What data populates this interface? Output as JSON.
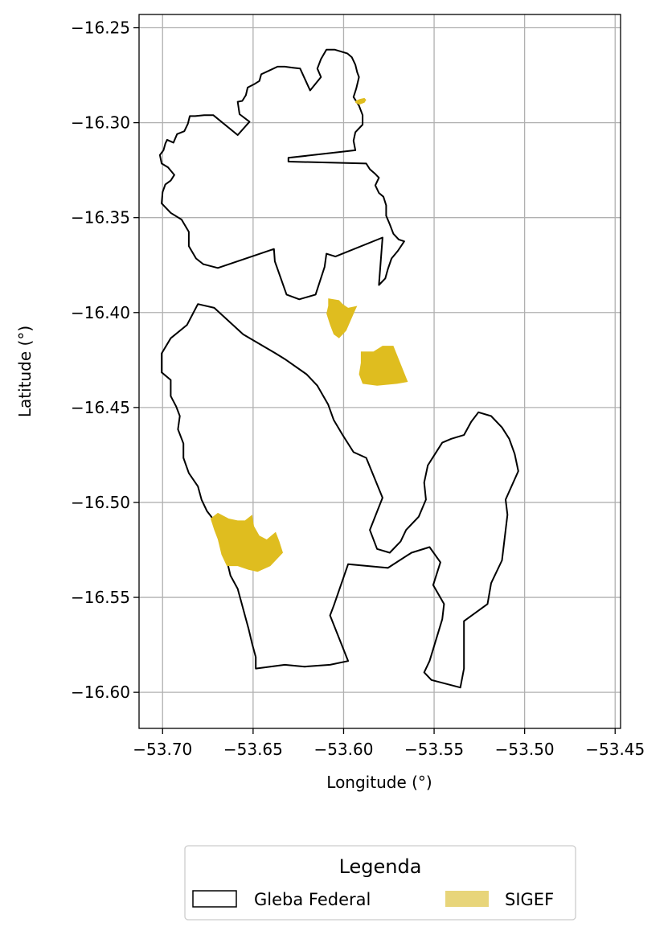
{
  "chart_data": {
    "type": "map",
    "xlabel": "Longitude (°)",
    "ylabel": "Latitude (°)",
    "xlim": [
      -53.713,
      -53.447
    ],
    "ylim": [
      -16.619,
      -16.243
    ],
    "grid": true,
    "x_ticks": [
      -53.7,
      -53.65,
      -53.6,
      -53.55,
      -53.5,
      -53.45
    ],
    "x_tick_labels": [
      "−53.70",
      "−53.65",
      "−53.60",
      "−53.55",
      "−53.50",
      "−53.45"
    ],
    "y_ticks": [
      -16.25,
      -16.3,
      -16.35,
      -16.4,
      -16.45,
      -16.5,
      -16.55,
      -16.6
    ],
    "y_tick_labels": [
      "−16.25",
      "−16.30",
      "−16.35",
      "−16.40",
      "−16.45",
      "−16.50",
      "−16.55",
      "−16.60"
    ],
    "legend": {
      "title": "Legenda",
      "placement": "bottom-center",
      "entries": [
        {
          "label": "Gleba Federal",
          "style": "outline",
          "color": "#000000"
        },
        {
          "label": "SIGEF",
          "style": "fill",
          "color": "#e8d57a"
        }
      ]
    },
    "colors": {
      "sigef_fill": "#dfbd1f",
      "gleba_edge": "#000000",
      "grid": "#b0b0b0"
    },
    "gleba_federal": [
      [
        -53.7015,
        -16.317
      ],
      [
        -53.6995,
        -16.3145
      ],
      [
        -53.6985,
        -16.311
      ],
      [
        -53.6975,
        -16.309
      ],
      [
        -53.694,
        -16.3105
      ],
      [
        -53.692,
        -16.306
      ],
      [
        -53.688,
        -16.3045
      ],
      [
        -53.686,
        -16.3005
      ],
      [
        -53.685,
        -16.2965
      ],
      [
        -53.682,
        -16.2965
      ],
      [
        -53.677,
        -16.296
      ],
      [
        -53.672,
        -16.296
      ],
      [
        -53.6585,
        -16.3065
      ],
      [
        -53.652,
        -16.2995
      ],
      [
        -53.6575,
        -16.2955
      ],
      [
        -53.6585,
        -16.289
      ],
      [
        -53.656,
        -16.2885
      ],
      [
        -53.654,
        -16.2855
      ],
      [
        -53.653,
        -16.2815
      ],
      [
        -53.649,
        -16.2795
      ],
      [
        -53.6465,
        -16.278
      ],
      [
        -53.6455,
        -16.2745
      ],
      [
        -53.641,
        -16.2725
      ],
      [
        -53.6365,
        -16.2705
      ],
      [
        -53.6325,
        -16.2705
      ],
      [
        -53.6285,
        -16.271
      ],
      [
        -53.624,
        -16.2715
      ],
      [
        -53.6185,
        -16.283
      ],
      [
        -53.6125,
        -16.276
      ],
      [
        -53.6145,
        -16.2715
      ],
      [
        -53.6125,
        -16.2665
      ],
      [
        -53.6095,
        -16.2615
      ],
      [
        -53.605,
        -16.2615
      ],
      [
        -53.6015,
        -16.2625
      ],
      [
        -53.598,
        -16.2635
      ],
      [
        -53.5955,
        -16.2655
      ],
      [
        -53.5935,
        -16.2695
      ],
      [
        -53.5925,
        -16.2735
      ],
      [
        -53.5915,
        -16.276
      ],
      [
        -53.593,
        -16.282
      ],
      [
        -53.5945,
        -16.2865
      ],
      [
        -53.5915,
        -16.291
      ],
      [
        -53.5895,
        -16.296
      ],
      [
        -53.5895,
        -16.301
      ],
      [
        -53.5935,
        -16.305
      ],
      [
        -53.5945,
        -16.3095
      ],
      [
        -53.5935,
        -16.3145
      ],
      [
        -53.6305,
        -16.3185
      ],
      [
        -53.6305,
        -16.3205
      ],
      [
        -53.5875,
        -16.3215
      ],
      [
        -53.5855,
        -16.3245
      ],
      [
        -53.5825,
        -16.327
      ],
      [
        -53.5805,
        -16.329
      ],
      [
        -53.5825,
        -16.333
      ],
      [
        -53.5805,
        -16.337
      ],
      [
        -53.578,
        -16.339
      ],
      [
        -53.5765,
        -16.3435
      ],
      [
        -53.5765,
        -16.349
      ],
      [
        -53.5745,
        -16.3535
      ],
      [
        -53.5725,
        -16.3585
      ],
      [
        -53.5695,
        -16.3615
      ],
      [
        -53.5665,
        -16.3625
      ],
      [
        -53.57,
        -16.3675
      ],
      [
        -53.5735,
        -16.3715
      ],
      [
        -53.5755,
        -16.377
      ],
      [
        -53.577,
        -16.382
      ],
      [
        -53.5805,
        -16.3855
      ],
      [
        -53.5785,
        -16.3605
      ],
      [
        -53.6045,
        -16.3705
      ],
      [
        -53.6095,
        -16.369
      ],
      [
        -53.6105,
        -16.376
      ],
      [
        -53.6155,
        -16.3905
      ],
      [
        -53.6245,
        -16.393
      ],
      [
        -53.6315,
        -16.3905
      ],
      [
        -53.638,
        -16.373
      ],
      [
        -53.6385,
        -16.3665
      ],
      [
        -53.6695,
        -16.3765
      ],
      [
        -53.6775,
        -16.3745
      ],
      [
        -53.6815,
        -16.3715
      ],
      [
        -53.6855,
        -16.365
      ],
      [
        -53.6855,
        -16.3575
      ],
      [
        -53.6895,
        -16.351
      ],
      [
        -53.6955,
        -16.3475
      ],
      [
        -53.7005,
        -16.3425
      ],
      [
        -53.7,
        -16.3365
      ],
      [
        -53.6985,
        -16.3325
      ],
      [
        -53.6955,
        -16.3305
      ],
      [
        -53.6935,
        -16.3275
      ],
      [
        -53.697,
        -16.3235
      ],
      [
        -53.7005,
        -16.3215
      ]
    ],
    "gleba_federal_south": [
      [
        -53.7005,
        -16.4315
      ],
      [
        -53.6955,
        -16.4355
      ],
      [
        -53.6955,
        -16.444
      ],
      [
        -53.6925,
        -16.4495
      ],
      [
        -53.6905,
        -16.4545
      ],
      [
        -53.6915,
        -16.4615
      ],
      [
        -53.6885,
        -16.469
      ],
      [
        -53.6885,
        -16.4765
      ],
      [
        -53.6855,
        -16.4845
      ],
      [
        -53.6805,
        -16.4915
      ],
      [
        -53.6785,
        -16.4985
      ],
      [
        -53.6755,
        -16.5045
      ],
      [
        -53.6715,
        -16.5095
      ],
      [
        -53.6695,
        -16.5175
      ],
      [
        -53.6675,
        -16.5245
      ],
      [
        -53.6645,
        -16.5305
      ],
      [
        -53.6625,
        -16.5385
      ],
      [
        -53.6585,
        -16.5455
      ],
      [
        -53.6565,
        -16.5525
      ],
      [
        -53.6545,
        -16.5595
      ],
      [
        -53.6525,
        -16.5665
      ],
      [
        -53.6505,
        -16.5745
      ],
      [
        -53.6485,
        -16.5815
      ],
      [
        -53.6485,
        -16.5875
      ],
      [
        -53.6325,
        -16.5855
      ],
      [
        -53.6215,
        -16.5865
      ],
      [
        -53.6075,
        -16.5855
      ],
      [
        -53.5975,
        -16.5835
      ],
      [
        -53.6075,
        -16.5595
      ],
      [
        -53.6055,
        -16.5545
      ],
      [
        -53.5975,
        -16.5325
      ],
      [
        -53.5755,
        -16.5345
      ],
      [
        -53.5625,
        -16.5265
      ],
      [
        -53.5525,
        -16.5235
      ],
      [
        -53.5465,
        -16.5315
      ],
      [
        -53.5505,
        -16.5435
      ],
      [
        -53.5445,
        -16.5535
      ],
      [
        -53.5455,
        -16.5615
      ],
      [
        -53.5525,
        -16.5835
      ],
      [
        -53.5555,
        -16.5895
      ],
      [
        -53.5515,
        -16.5935
      ],
      [
        -53.5355,
        -16.5975
      ],
      [
        -53.5335,
        -16.5875
      ],
      [
        -53.5335,
        -16.5625
      ],
      [
        -53.5205,
        -16.5535
      ],
      [
        -53.5185,
        -16.5425
      ],
      [
        -53.5125,
        -16.5305
      ],
      [
        -53.5095,
        -16.5065
      ],
      [
        -53.5105,
        -16.4985
      ],
      [
        -53.5035,
        -16.4835
      ],
      [
        -53.5055,
        -16.4745
      ],
      [
        -53.5085,
        -16.4665
      ],
      [
        -53.5125,
        -16.4605
      ],
      [
        -53.5185,
        -16.4545
      ],
      [
        -53.5255,
        -16.4525
      ],
      [
        -53.5295,
        -16.4575
      ],
      [
        -53.5335,
        -16.4645
      ],
      [
        -53.5405,
        -16.4665
      ],
      [
        -53.5455,
        -16.4685
      ],
      [
        -53.5495,
        -16.4745
      ],
      [
        -53.5535,
        -16.4805
      ],
      [
        -53.5555,
        -16.4895
      ],
      [
        -53.5545,
        -16.4985
      ],
      [
        -53.5585,
        -16.5075
      ],
      [
        -53.5655,
        -16.5145
      ],
      [
        -53.5685,
        -16.5205
      ],
      [
        -53.5745,
        -16.5265
      ],
      [
        -53.5815,
        -16.5245
      ],
      [
        -53.5855,
        -16.5145
      ],
      [
        -53.5785,
        -16.4975
      ],
      [
        -53.5875,
        -16.4765
      ],
      [
        -53.5945,
        -16.4735
      ],
      [
        -53.6005,
        -16.4645
      ],
      [
        -53.6055,
        -16.4565
      ],
      [
        -53.6085,
        -16.4485
      ],
      [
        -53.6145,
        -16.4385
      ],
      [
        -53.6205,
        -16.4325
      ],
      [
        -53.6325,
        -16.4245
      ],
      [
        -53.6375,
        -16.4215
      ],
      [
        -53.6555,
        -16.4115
      ],
      [
        -53.6715,
        -16.3975
      ],
      [
        -53.6805,
        -16.3955
      ],
      [
        -53.6865,
        -16.4065
      ],
      [
        -53.6955,
        -16.4135
      ],
      [
        -53.7005,
        -16.4215
      ]
    ],
    "sigef_areas": [
      [
        [
          -53.5935,
          -16.2885
        ],
        [
          -53.591,
          -16.2875
        ],
        [
          -53.5885,
          -16.287
        ],
        [
          -53.5875,
          -16.288
        ],
        [
          -53.5885,
          -16.2895
        ],
        [
          -53.5915,
          -16.2905
        ],
        [
          -53.5935,
          -16.2895
        ]
      ],
      [
        [
          -53.6085,
          -16.3925
        ],
        [
          -53.6025,
          -16.3935
        ],
        [
          -53.6005,
          -16.3955
        ],
        [
          -53.5975,
          -16.3975
        ],
        [
          -53.5925,
          -16.3965
        ],
        [
          -53.5935,
          -16.3985
        ],
        [
          -53.5985,
          -16.4095
        ],
        [
          -53.6025,
          -16.4135
        ],
        [
          -53.6055,
          -16.4115
        ],
        [
          -53.6075,
          -16.4065
        ],
        [
          -53.6095,
          -16.4005
        ],
        [
          -53.6085,
          -16.3965
        ]
      ],
      [
        [
          -53.5905,
          -16.4205
        ],
        [
          -53.5835,
          -16.4205
        ],
        [
          -53.5785,
          -16.4175
        ],
        [
          -53.5725,
          -16.4175
        ],
        [
          -53.5645,
          -16.4365
        ],
        [
          -53.5705,
          -16.4375
        ],
        [
          -53.5815,
          -16.4385
        ],
        [
          -53.5895,
          -16.4375
        ],
        [
          -53.5915,
          -16.4325
        ],
        [
          -53.5905,
          -16.4265
        ]
      ],
      [
        [
          -53.6735,
          -16.5085
        ],
        [
          -53.6695,
          -16.5055
        ],
        [
          -53.6635,
          -16.5085
        ],
        [
          -53.6585,
          -16.5095
        ],
        [
          -53.6545,
          -16.5095
        ],
        [
          -53.6505,
          -16.5065
        ],
        [
          -53.6495,
          -16.5125
        ],
        [
          -53.6465,
          -16.5175
        ],
        [
          -53.6425,
          -16.5195
        ],
        [
          -53.6375,
          -16.5155
        ],
        [
          -53.6355,
          -16.5205
        ],
        [
          -53.6335,
          -16.5265
        ],
        [
          -53.6405,
          -16.5335
        ],
        [
          -53.6475,
          -16.5365
        ],
        [
          -53.6525,
          -16.5355
        ],
        [
          -53.6585,
          -16.5335
        ],
        [
          -53.6645,
          -16.5335
        ],
        [
          -53.6675,
          -16.5275
        ],
        [
          -53.6695,
          -16.5195
        ],
        [
          -53.6715,
          -16.5145
        ]
      ]
    ]
  }
}
